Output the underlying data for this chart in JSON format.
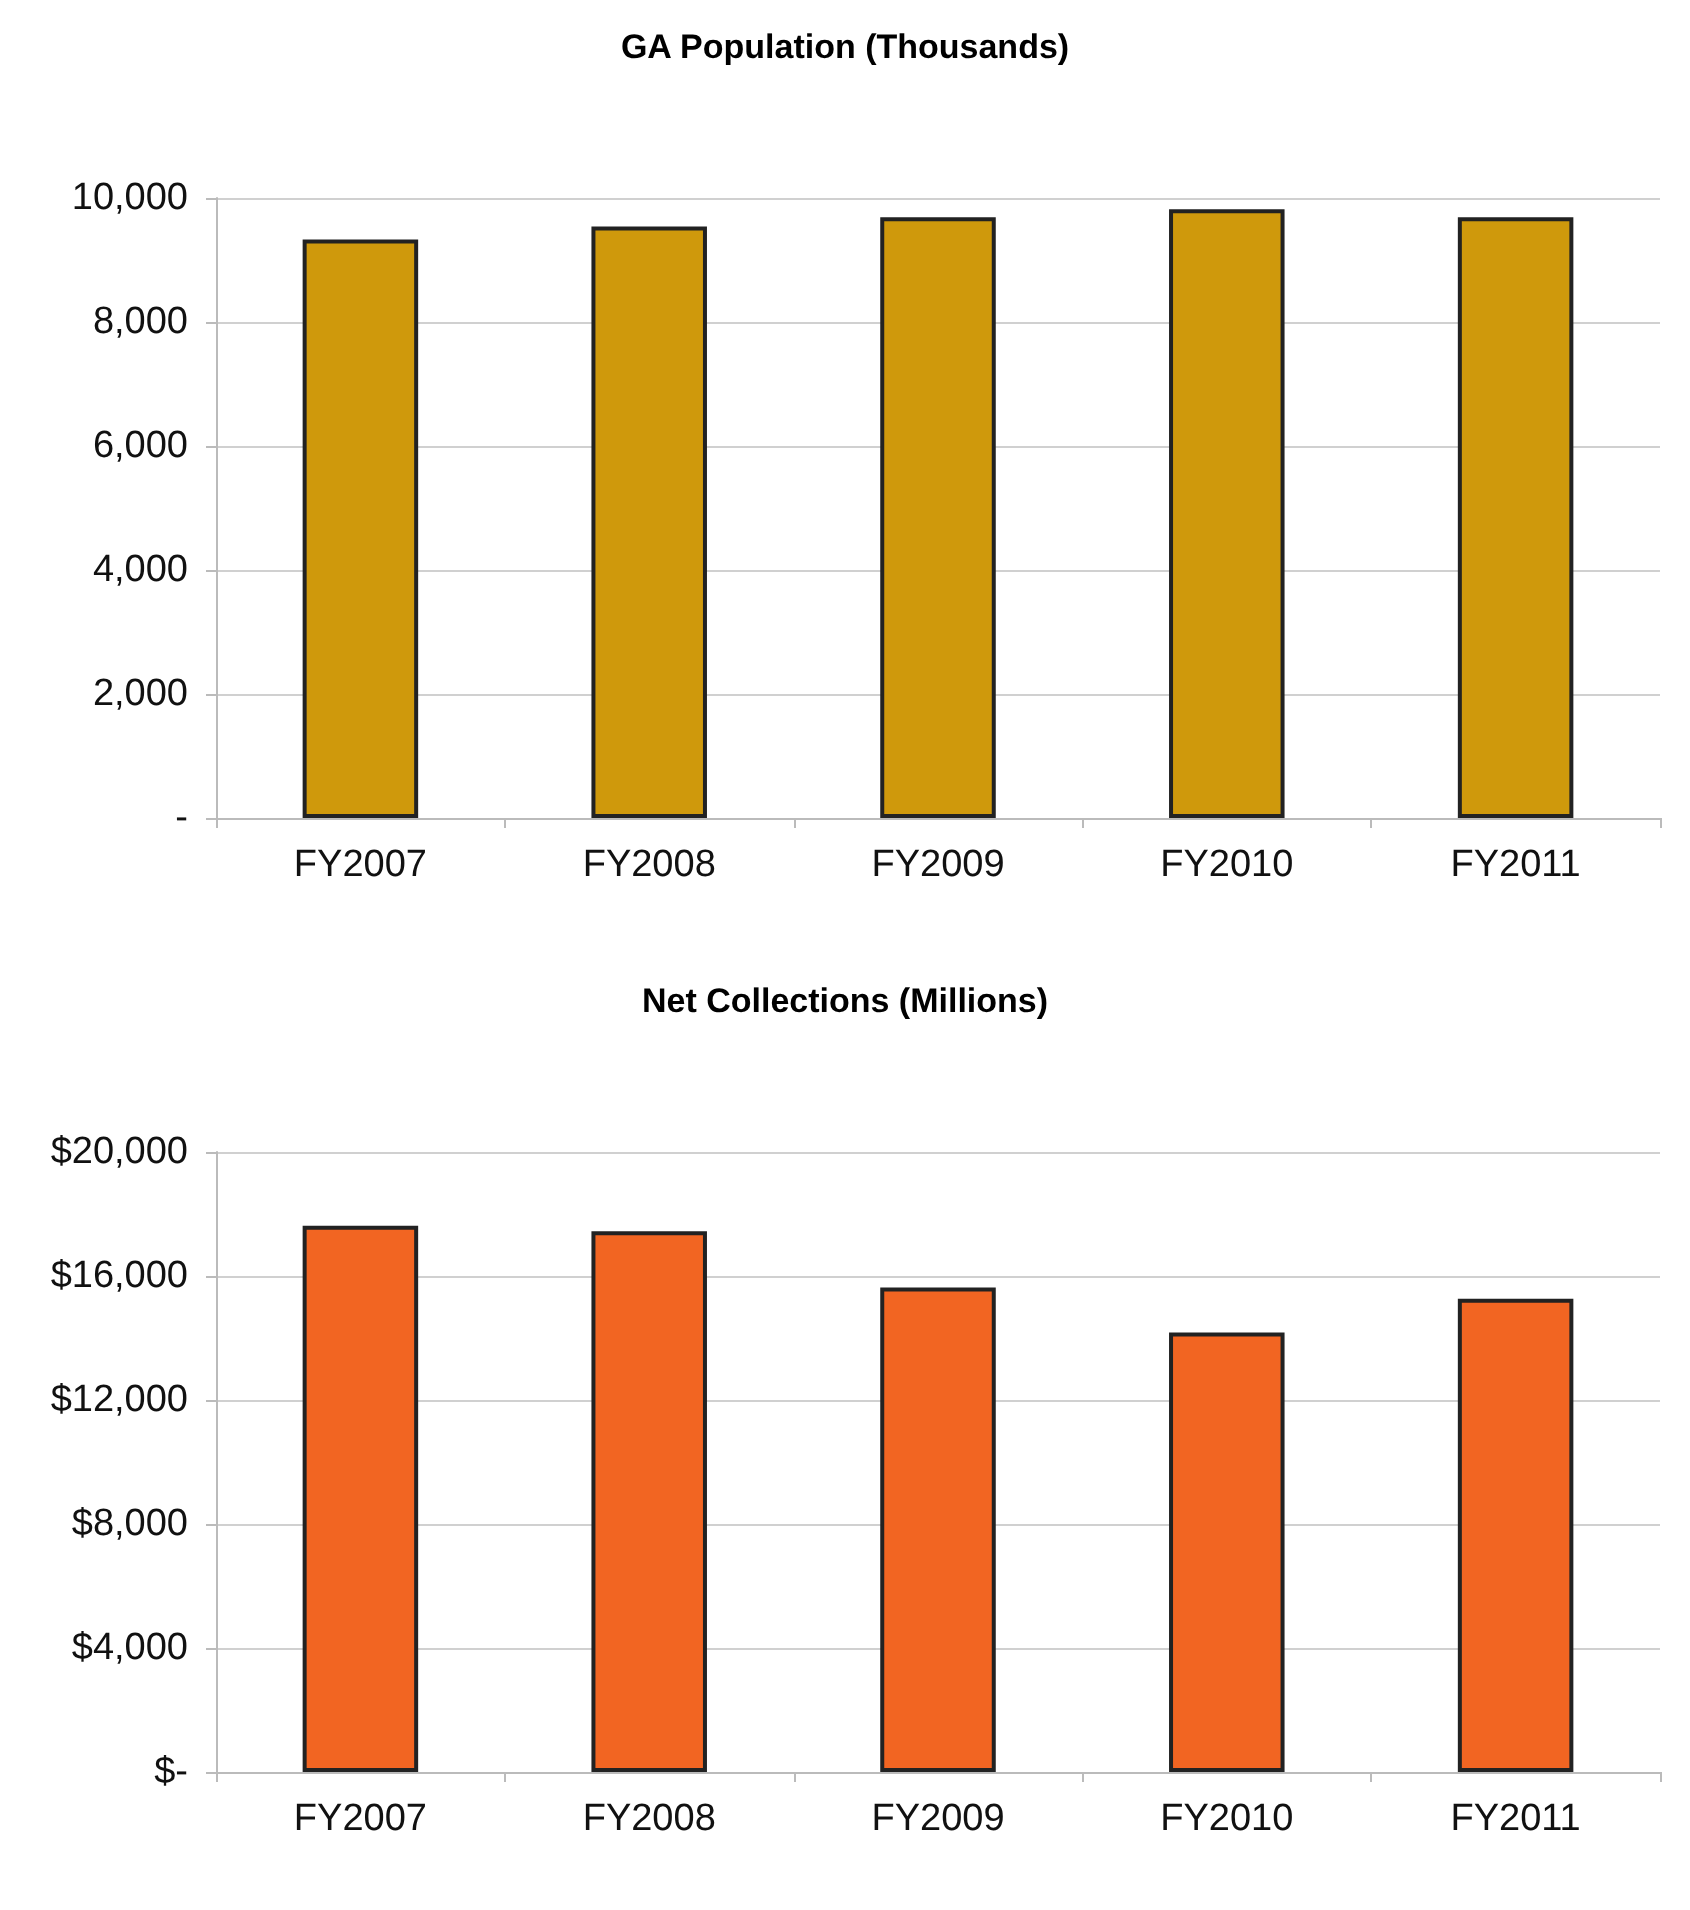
{
  "chart_data": [
    {
      "type": "bar",
      "title": "GA Population (Thousands)",
      "categories": [
        "FY2007",
        "FY2008",
        "FY2009",
        "FY2010",
        "FY2011"
      ],
      "values": [
        9330,
        9540,
        9690,
        9820,
        9690
      ],
      "color": "#cf990c",
      "ylim": [
        0,
        10000
      ],
      "yticks": [
        {
          "value": 0,
          "label": "-"
        },
        {
          "value": 2000,
          "label": "2,000"
        },
        {
          "value": 4000,
          "label": "4,000"
        },
        {
          "value": 6000,
          "label": "6,000"
        },
        {
          "value": 8000,
          "label": "8,000"
        },
        {
          "value": 10000,
          "label": "10,000"
        }
      ],
      "grid": "y"
    },
    {
      "type": "bar",
      "title": "Net Collections (Millions)",
      "categories": [
        "FY2007",
        "FY2008",
        "FY2009",
        "FY2010",
        "FY2011"
      ],
      "values": [
        17620,
        17440,
        15630,
        14180,
        15270
      ],
      "color": "#f26522",
      "ylim": [
        0,
        20000
      ],
      "yticks": [
        {
          "value": 0,
          "label": "$-"
        },
        {
          "value": 4000,
          "label": "$4,000"
        },
        {
          "value": 8000,
          "label": "$8,000"
        },
        {
          "value": 12000,
          "label": "$12,000"
        },
        {
          "value": 16000,
          "label": "$16,000"
        },
        {
          "value": 20000,
          "label": "$20,000"
        }
      ],
      "grid": "y"
    }
  ]
}
